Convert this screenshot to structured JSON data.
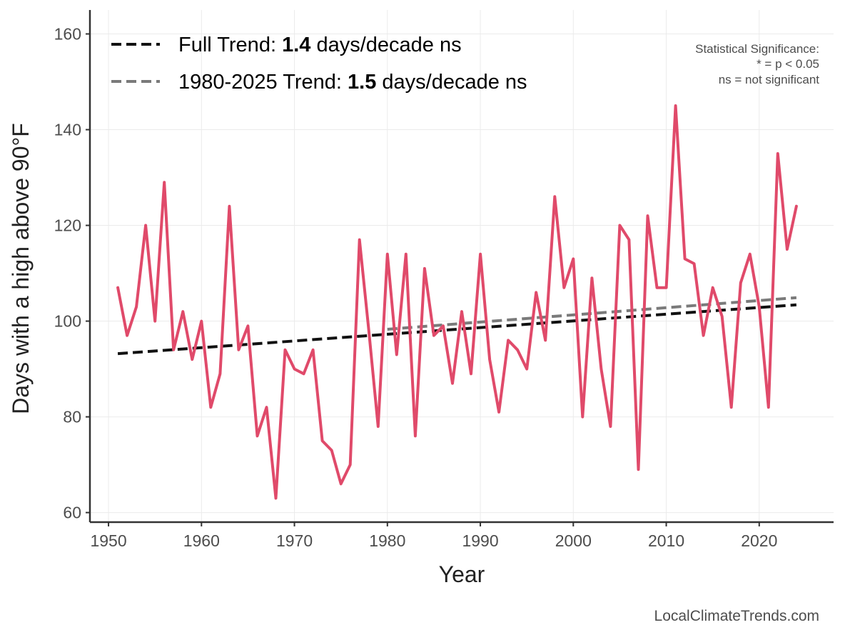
{
  "chart_data": {
    "type": "line",
    "xlabel": "Year",
    "ylabel": "Days with a high above 90°F",
    "xlim": [
      1948,
      2028
    ],
    "ylim": [
      58,
      165
    ],
    "x_ticks": [
      1950,
      1960,
      1970,
      1980,
      1990,
      2000,
      2010,
      2020
    ],
    "y_ticks": [
      60,
      80,
      100,
      120,
      140,
      160
    ],
    "grid": true,
    "series": [
      {
        "name": "Days above 90°F",
        "color": "#e04a6a",
        "x": [
          1951,
          1952,
          1953,
          1954,
          1955,
          1956,
          1957,
          1958,
          1959,
          1960,
          1961,
          1962,
          1963,
          1964,
          1965,
          1966,
          1967,
          1968,
          1969,
          1970,
          1971,
          1972,
          1973,
          1974,
          1975,
          1976,
          1977,
          1978,
          1979,
          1980,
          1981,
          1982,
          1983,
          1984,
          1985,
          1986,
          1987,
          1988,
          1989,
          1990,
          1991,
          1992,
          1993,
          1994,
          1995,
          1996,
          1997,
          1998,
          1999,
          2000,
          2001,
          2002,
          2003,
          2004,
          2005,
          2006,
          2007,
          2008,
          2009,
          2010,
          2011,
          2012,
          2013,
          2014,
          2015,
          2016,
          2017,
          2018,
          2019,
          2020,
          2021,
          2022,
          2023,
          2024
        ],
        "values": [
          107,
          97,
          103,
          120,
          100,
          129,
          94,
          102,
          92,
          100,
          82,
          89,
          124,
          94,
          99,
          76,
          82,
          63,
          94,
          90,
          89,
          94,
          75,
          73,
          66,
          70,
          117,
          98,
          78,
          114,
          93,
          114,
          76,
          111,
          97,
          99,
          87,
          102,
          89,
          114,
          92,
          81,
          96,
          94,
          90,
          106,
          96,
          126,
          107,
          113,
          80,
          109,
          90,
          78,
          120,
          117,
          69,
          122,
          107,
          107,
          145,
          113,
          112,
          97,
          107,
          101,
          82,
          108,
          114,
          103,
          82,
          135,
          115,
          124
        ]
      }
    ],
    "trends": [
      {
        "name": "Full Trend",
        "label_prefix": "Full Trend: ",
        "rate": "1.4",
        "label_suffix": " days/decade ns",
        "color": "#111111",
        "x": [
          1951,
          2024
        ],
        "values": [
          93.2,
          103.4
        ]
      },
      {
        "name": "1980-2025 Trend",
        "label_prefix": "1980-2025 Trend: ",
        "rate": "1.5",
        "label_suffix": " days/decade ns",
        "color": "#7a7a7a",
        "x": [
          1980,
          2024
        ],
        "values": [
          98.3,
          104.9
        ]
      }
    ],
    "annotations": {
      "significance_title": "Statistical Significance:",
      "significance_line1": "* = p < 0.05",
      "significance_line2": "ns = not significant"
    },
    "source": "LocalClimateTrends.com"
  }
}
